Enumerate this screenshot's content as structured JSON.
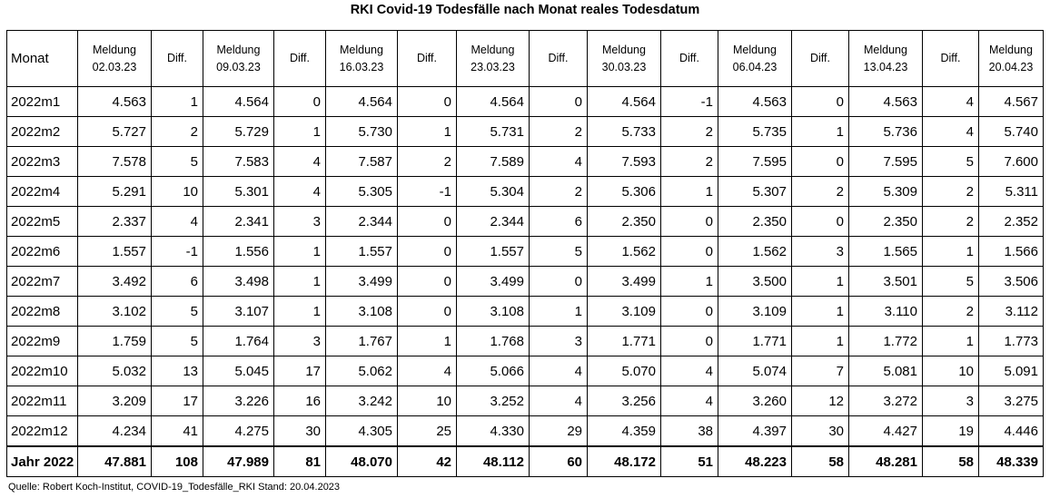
{
  "title": "RKI Covid-19 Todesfälle nach Monat reales Todesdatum",
  "headers": [
    {
      "lines": [
        "Monat"
      ]
    },
    {
      "lines": [
        "Meldung",
        "02.03.23"
      ]
    },
    {
      "lines": [
        "Diff."
      ]
    },
    {
      "lines": [
        "Meldung",
        "09.03.23"
      ]
    },
    {
      "lines": [
        "Diff."
      ]
    },
    {
      "lines": [
        "Meldung",
        "16.03.23"
      ]
    },
    {
      "lines": [
        "Diff."
      ]
    },
    {
      "lines": [
        "Meldung",
        "23.03.23"
      ]
    },
    {
      "lines": [
        "Diff."
      ]
    },
    {
      "lines": [
        "Meldung",
        "30.03.23"
      ]
    },
    {
      "lines": [
        "Diff."
      ]
    },
    {
      "lines": [
        "Meldung",
        "06.04.23"
      ]
    },
    {
      "lines": [
        "Diff."
      ]
    },
    {
      "lines": [
        "Meldung",
        "13.04.23"
      ]
    },
    {
      "lines": [
        "Diff."
      ]
    },
    {
      "lines": [
        "Meldung",
        "20.04.23"
      ]
    }
  ],
  "rows": [
    [
      "2022m1",
      "4.563",
      "1",
      "4.564",
      "0",
      "4.564",
      "0",
      "4.564",
      "0",
      "4.564",
      "-1",
      "4.563",
      "0",
      "4.563",
      "4",
      "4.567"
    ],
    [
      "2022m2",
      "5.727",
      "2",
      "5.729",
      "1",
      "5.730",
      "1",
      "5.731",
      "2",
      "5.733",
      "2",
      "5.735",
      "1",
      "5.736",
      "4",
      "5.740"
    ],
    [
      "2022m3",
      "7.578",
      "5",
      "7.583",
      "4",
      "7.587",
      "2",
      "7.589",
      "4",
      "7.593",
      "2",
      "7.595",
      "0",
      "7.595",
      "5",
      "7.600"
    ],
    [
      "2022m4",
      "5.291",
      "10",
      "5.301",
      "4",
      "5.305",
      "-1",
      "5.304",
      "2",
      "5.306",
      "1",
      "5.307",
      "2",
      "5.309",
      "2",
      "5.311"
    ],
    [
      "2022m5",
      "2.337",
      "4",
      "2.341",
      "3",
      "2.344",
      "0",
      "2.344",
      "6",
      "2.350",
      "0",
      "2.350",
      "0",
      "2.350",
      "2",
      "2.352"
    ],
    [
      "2022m6",
      "1.557",
      "-1",
      "1.556",
      "1",
      "1.557",
      "0",
      "1.557",
      "5",
      "1.562",
      "0",
      "1.562",
      "3",
      "1.565",
      "1",
      "1.566"
    ],
    [
      "2022m7",
      "3.492",
      "6",
      "3.498",
      "1",
      "3.499",
      "0",
      "3.499",
      "0",
      "3.499",
      "1",
      "3.500",
      "1",
      "3.501",
      "5",
      "3.506"
    ],
    [
      "2022m8",
      "3.102",
      "5",
      "3.107",
      "1",
      "3.108",
      "0",
      "3.108",
      "1",
      "3.109",
      "0",
      "3.109",
      "1",
      "3.110",
      "2",
      "3.112"
    ],
    [
      "2022m9",
      "1.759",
      "5",
      "1.764",
      "3",
      "1.767",
      "1",
      "1.768",
      "3",
      "1.771",
      "0",
      "1.771",
      "1",
      "1.772",
      "1",
      "1.773"
    ],
    [
      "2022m10",
      "5.032",
      "13",
      "5.045",
      "17",
      "5.062",
      "4",
      "5.066",
      "4",
      "5.070",
      "4",
      "5.074",
      "7",
      "5.081",
      "10",
      "5.091"
    ],
    [
      "2022m11",
      "3.209",
      "17",
      "3.226",
      "16",
      "3.242",
      "10",
      "3.252",
      "4",
      "3.256",
      "4",
      "3.260",
      "12",
      "3.272",
      "3",
      "3.275"
    ],
    [
      "2022m12",
      "4.234",
      "41",
      "4.275",
      "30",
      "4.305",
      "25",
      "4.330",
      "29",
      "4.359",
      "38",
      "4.397",
      "30",
      "4.427",
      "19",
      "4.446"
    ]
  ],
  "total": [
    "Jahr 2022",
    "47.881",
    "108",
    "47.989",
    "81",
    "48.070",
    "42",
    "48.112",
    "60",
    "48.172",
    "51",
    "48.223",
    "58",
    "48.281",
    "58",
    "48.339"
  ],
  "source": "Quelle: Robert Koch-Institut, COVID-19_Todesfälle_RKI Stand: 20.04.2023"
}
